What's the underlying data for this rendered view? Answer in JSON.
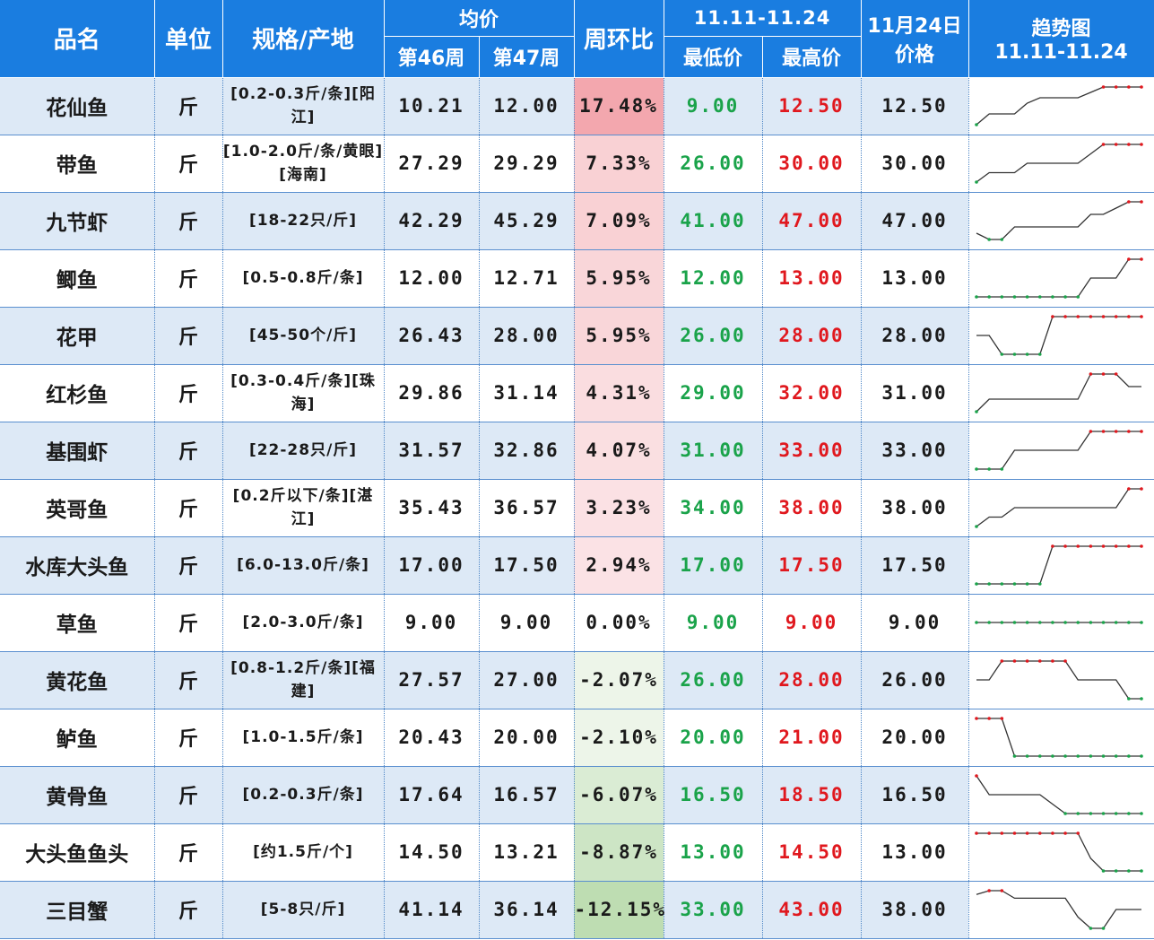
{
  "header": {
    "name": "品名",
    "unit": "单位",
    "spec": "规格/产地",
    "avg": "均价",
    "week46": "第46周",
    "week47": "第47周",
    "wow": "周环比",
    "range": "11.11-11.24",
    "low": "最低价",
    "high": "最高价",
    "date_line1": "11月24日",
    "date_line2": "价格",
    "trend_line1": "趋势图",
    "trend_line2": "11.11-11.24"
  },
  "colors": {
    "header_bg": "#1a7de0",
    "low_text": "#1aa34a",
    "high_text": "#e0181e",
    "row_alt": "#dde9f6"
  },
  "rows": [
    {
      "name": "花仙鱼",
      "unit": "斤",
      "spec": "[0.2-0.3斤/条][阳江]",
      "w46": "10.21",
      "w47": "12.00",
      "wow": "17.48%",
      "wow_value": 17.48,
      "low": "9.00",
      "high": "12.50",
      "price": "12.50",
      "trend": [
        9,
        10,
        10,
        10,
        11,
        11.5,
        11.5,
        11.5,
        11.5,
        12,
        12.5,
        12.5,
        12.5,
        12.5
      ]
    },
    {
      "name": "带鱼",
      "unit": "斤",
      "spec": "[1.0-2.0斤/条/黄眼][海南]",
      "w46": "27.29",
      "w47": "29.29",
      "wow": "7.33%",
      "wow_value": 7.33,
      "low": "26.00",
      "high": "30.00",
      "price": "30.00",
      "trend": [
        26,
        27,
        27,
        27,
        28,
        28,
        28,
        28,
        28,
        29,
        30,
        30,
        30,
        30
      ]
    },
    {
      "name": "九节虾",
      "unit": "斤",
      "spec": "[18-22只/斤]",
      "w46": "42.29",
      "w47": "45.29",
      "wow": "7.09%",
      "wow_value": 7.09,
      "low": "41.00",
      "high": "47.00",
      "price": "47.00",
      "trend": [
        42,
        41,
        41,
        43,
        43,
        43,
        43,
        43,
        43,
        45,
        45,
        46,
        47,
        47
      ]
    },
    {
      "name": "鲫鱼",
      "unit": "斤",
      "spec": "[0.5-0.8斤/条]",
      "w46": "12.00",
      "w47": "12.71",
      "wow": "5.95%",
      "wow_value": 5.95,
      "low": "12.00",
      "high": "13.00",
      "price": "13.00",
      "trend": [
        12,
        12,
        12,
        12,
        12,
        12,
        12,
        12,
        12,
        12.5,
        12.5,
        12.5,
        13,
        13
      ]
    },
    {
      "name": "花甲",
      "unit": "斤",
      "spec": "[45-50个/斤]",
      "w46": "26.43",
      "w47": "28.00",
      "wow": "5.95%",
      "wow_value": 5.95,
      "low": "26.00",
      "high": "28.00",
      "price": "28.00",
      "trend": [
        27,
        27,
        26,
        26,
        26,
        26,
        28,
        28,
        28,
        28,
        28,
        28,
        28,
        28
      ]
    },
    {
      "name": "红杉鱼",
      "unit": "斤",
      "spec": "[0.3-0.4斤/条][珠海]",
      "w46": "29.86",
      "w47": "31.14",
      "wow": "4.31%",
      "wow_value": 4.31,
      "low": "29.00",
      "high": "32.00",
      "price": "31.00",
      "trend": [
        29,
        30,
        30,
        30,
        30,
        30,
        30,
        30,
        30,
        32,
        32,
        32,
        31,
        31
      ]
    },
    {
      "name": "基围虾",
      "unit": "斤",
      "spec": "[22-28只/斤]",
      "w46": "31.57",
      "w47": "32.86",
      "wow": "4.07%",
      "wow_value": 4.07,
      "low": "31.00",
      "high": "33.00",
      "price": "33.00",
      "trend": [
        31,
        31,
        31,
        32,
        32,
        32,
        32,
        32,
        32,
        33,
        33,
        33,
        33,
        33
      ]
    },
    {
      "name": "英哥鱼",
      "unit": "斤",
      "spec": "[0.2斤以下/条][湛江]",
      "w46": "35.43",
      "w47": "36.57",
      "wow": "3.23%",
      "wow_value": 3.23,
      "low": "34.00",
      "high": "38.00",
      "price": "38.00",
      "trend": [
        34,
        35,
        35,
        36,
        36,
        36,
        36,
        36,
        36,
        36,
        36,
        36,
        38,
        38
      ]
    },
    {
      "name": "水库大头鱼",
      "unit": "斤",
      "spec": "[6.0-13.0斤/条]",
      "w46": "17.00",
      "w47": "17.50",
      "wow": "2.94%",
      "wow_value": 2.94,
      "low": "17.00",
      "high": "17.50",
      "price": "17.50",
      "trend": [
        17,
        17,
        17,
        17,
        17,
        17,
        17.5,
        17.5,
        17.5,
        17.5,
        17.5,
        17.5,
        17.5,
        17.5
      ]
    },
    {
      "name": "草鱼",
      "unit": "斤",
      "spec": "[2.0-3.0斤/条]",
      "w46": "9.00",
      "w47": "9.00",
      "wow": "0.00%",
      "wow_value": 0,
      "low": "9.00",
      "high": "9.00",
      "price": "9.00",
      "trend": [
        9,
        9,
        9,
        9,
        9,
        9,
        9,
        9,
        9,
        9,
        9,
        9,
        9,
        9
      ]
    },
    {
      "name": "黄花鱼",
      "unit": "斤",
      "spec": "[0.8-1.2斤/条][福建]",
      "w46": "27.57",
      "w47": "27.00",
      "wow": "-2.07%",
      "wow_value": -2.07,
      "low": "26.00",
      "high": "28.00",
      "price": "26.00",
      "trend": [
        27,
        27,
        28,
        28,
        28,
        28,
        28,
        28,
        27,
        27,
        27,
        27,
        26,
        26
      ]
    },
    {
      "name": "鲈鱼",
      "unit": "斤",
      "spec": "[1.0-1.5斤/条]",
      "w46": "20.43",
      "w47": "20.00",
      "wow": "-2.10%",
      "wow_value": -2.1,
      "low": "20.00",
      "high": "21.00",
      "price": "20.00",
      "trend": [
        21,
        21,
        21,
        20,
        20,
        20,
        20,
        20,
        20,
        20,
        20,
        20,
        20,
        20
      ]
    },
    {
      "name": "黄骨鱼",
      "unit": "斤",
      "spec": "[0.2-0.3斤/条]",
      "w46": "17.64",
      "w47": "16.57",
      "wow": "-6.07%",
      "wow_value": -6.07,
      "low": "16.50",
      "high": "18.50",
      "price": "16.50",
      "trend": [
        18.5,
        17.5,
        17.5,
        17.5,
        17.5,
        17.5,
        17,
        16.5,
        16.5,
        16.5,
        16.5,
        16.5,
        16.5,
        16.5
      ]
    },
    {
      "name": "大头鱼鱼头",
      "unit": "斤",
      "spec": "[约1.5斤/个]",
      "w46": "14.50",
      "w47": "13.21",
      "wow": "-8.87%",
      "wow_value": -8.87,
      "low": "13.00",
      "high": "14.50",
      "price": "13.00",
      "trend": [
        14.5,
        14.5,
        14.5,
        14.5,
        14.5,
        14.5,
        14.5,
        14.5,
        14.5,
        13.5,
        13,
        13,
        13,
        13
      ]
    },
    {
      "name": "三目蟹",
      "unit": "斤",
      "spec": "[5-8只/斤]",
      "w46": "41.14",
      "w47": "36.14",
      "wow": "-12.15%",
      "wow_value": -12.15,
      "low": "33.00",
      "high": "43.00",
      "price": "38.00",
      "trend": [
        42,
        43,
        43,
        41,
        41,
        41,
        41,
        41,
        36,
        33,
        33,
        38,
        38,
        38
      ]
    }
  ]
}
